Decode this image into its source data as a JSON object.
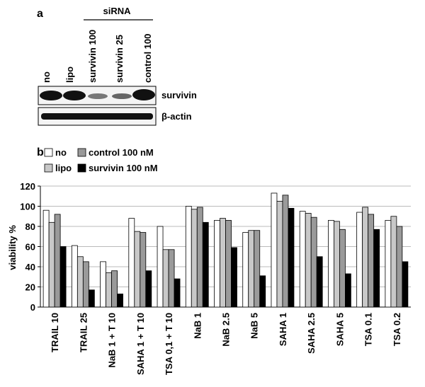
{
  "blot": {
    "panel_label": "a",
    "group_label": "siRNA",
    "lanes": [
      "no",
      "lipo",
      "survivin 100",
      "survivin 25",
      "control 100"
    ],
    "bands": [
      "survivin",
      "β-actin"
    ]
  },
  "chart_data": {
    "type": "bar",
    "panel_label": "b",
    "y_label": "viability %",
    "categories": [
      "TRAIL 10",
      "TRAIL 25",
      "NaB 1 + T 10",
      "SAHA 1 + T 10",
      "TSA 0,1 + T 10",
      "NaB 1",
      "NaB 2.5",
      "NaB 5",
      "SAHA 1",
      "SAHA 2.5",
      "SAHA 5",
      "TSA 0.1",
      "TSA 0.2"
    ],
    "series": [
      {
        "name": "no",
        "color": "#ffffff",
        "values": [
          96,
          61,
          45,
          88,
          80,
          100,
          86,
          74,
          113,
          95,
          86,
          94,
          86
        ]
      },
      {
        "name": "lipo",
        "color": "#c8c8c8",
        "values": [
          84,
          50,
          34,
          75,
          57,
          97,
          88,
          76,
          105,
          93,
          85,
          99,
          90
        ]
      },
      {
        "name": "control 100 nM",
        "color": "#9a9a9a",
        "values": [
          92,
          45,
          36,
          74,
          57,
          99,
          86,
          76,
          111,
          89,
          77,
          92,
          80
        ]
      },
      {
        "name": "survivin 100 nM",
        "color": "#000000",
        "values": [
          60,
          17,
          13,
          36,
          28,
          84,
          59,
          31,
          98,
          50,
          33,
          77,
          45
        ]
      }
    ],
    "ylim": [
      0,
      120
    ],
    "yticks": [
      0,
      20,
      40,
      60,
      80,
      100,
      120
    ],
    "grid": true
  }
}
